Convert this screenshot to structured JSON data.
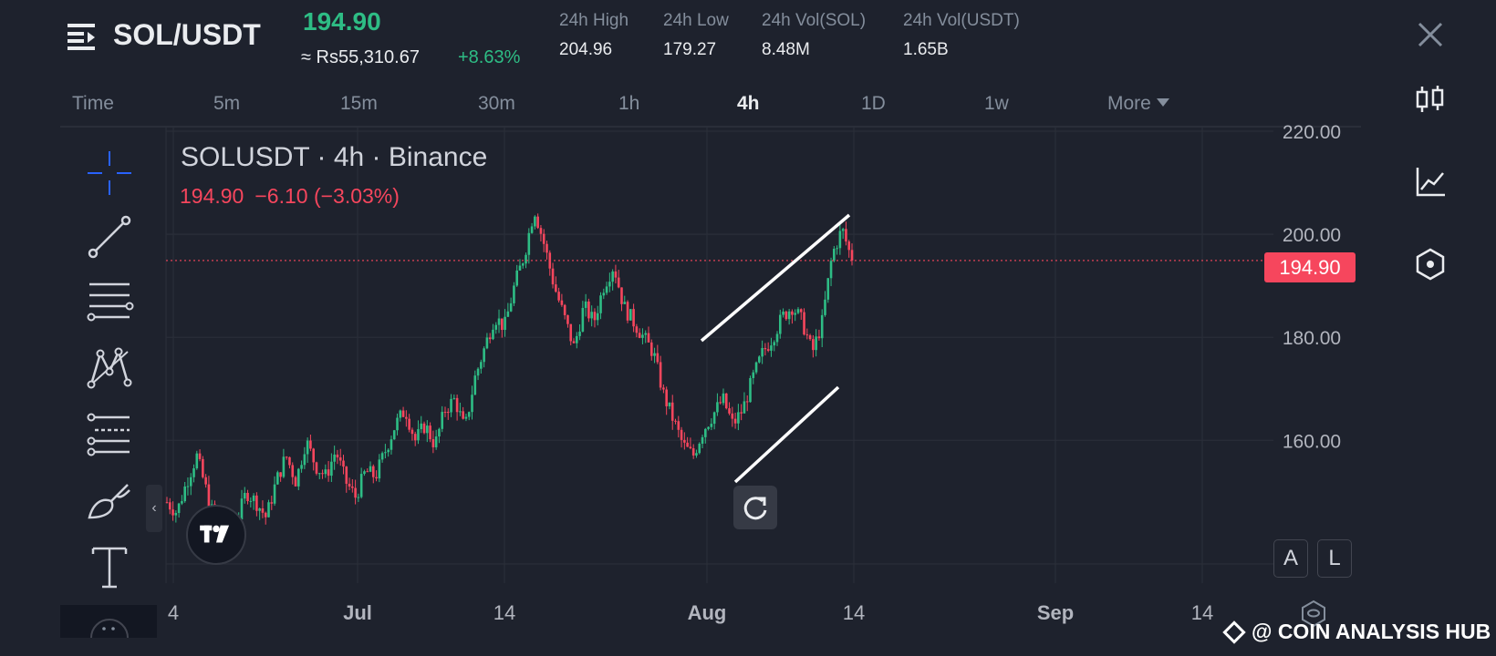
{
  "header": {
    "symbol": "SOL/USDT",
    "last_price": "194.90",
    "fiat_price": "≈ Rs55,310.67",
    "change_pct": "+8.63%",
    "stats": [
      {
        "label": "24h High",
        "value": "204.96"
      },
      {
        "label": "24h Low",
        "value": "179.27"
      },
      {
        "label": "24h Vol(SOL)",
        "value": "8.48M"
      },
      {
        "label": "24h Vol(USDT)",
        "value": "1.65B"
      }
    ]
  },
  "tabs": [
    {
      "label": "Time"
    },
    {
      "label": "5m"
    },
    {
      "label": "15m"
    },
    {
      "label": "30m"
    },
    {
      "label": "1h"
    },
    {
      "label": "4h",
      "active": true
    },
    {
      "label": "1D"
    },
    {
      "label": "1w"
    },
    {
      "label": "More"
    }
  ],
  "right_tools": [
    "candle-type-icon",
    "indicators-icon",
    "settings-hex-icon"
  ],
  "left_tools": [
    "crosshair-icon",
    "trendline-icon",
    "horizontal-lines-icon",
    "pattern-icon",
    "fib-icon",
    "brush-icon",
    "text-icon"
  ],
  "legend": {
    "title": "SOLUSDT · 4h · Binance",
    "price": "194.90",
    "change": "−6.10 (−3.03%)"
  },
  "price_tag": "194.90",
  "buttons": {
    "auto": "A",
    "log": "L",
    "collapse": "‹"
  },
  "watermark": "@ COIN ANALYSIS HUB",
  "colors": {
    "up": "#2ebd85",
    "down": "#f6465d",
    "background": "#1e222d",
    "grid": "#2a2e39",
    "accent": "#2962ff"
  },
  "chart_data": {
    "type": "candlestick",
    "symbol": "SOLUSDT",
    "interval": "4h",
    "exchange": "Binance",
    "ylim": [
      138,
      222
    ],
    "y_ticks": [
      220,
      200,
      180,
      160
    ],
    "y_tick_labels": [
      "220.00",
      "200.00",
      "180.00",
      "160.00"
    ],
    "x_ticks": [
      "4",
      "Jul",
      "14",
      "Aug",
      "14",
      "Sep",
      "14"
    ],
    "current_price": 194.9,
    "close_series": [
      148,
      146,
      152,
      157,
      150,
      143,
      139,
      144,
      150,
      148,
      145,
      152,
      157,
      152,
      160,
      155,
      153,
      158,
      152,
      149,
      154,
      153,
      158,
      163,
      166,
      160,
      163,
      159,
      166,
      168,
      162,
      172,
      178,
      184,
      182,
      190,
      196,
      205,
      198,
      190,
      184,
      178,
      186,
      183,
      190,
      194,
      186,
      183,
      180,
      177,
      169,
      164,
      159,
      157,
      162,
      165,
      168,
      163,
      166,
      172,
      177,
      180,
      184,
      186,
      183,
      177,
      183,
      196,
      201,
      194.9
    ],
    "trendlines": [
      {
        "name": "upper-channel",
        "from": {
          "date": "Aug 1",
          "price": 181
        },
        "to": {
          "date": "Aug 14",
          "price": 205
        }
      },
      {
        "name": "lower-channel",
        "from": {
          "date": "Aug 4",
          "price": 155
        },
        "to": {
          "date": "Aug 13",
          "price": 173
        }
      }
    ],
    "price_line": 194.9,
    "grid": true
  }
}
